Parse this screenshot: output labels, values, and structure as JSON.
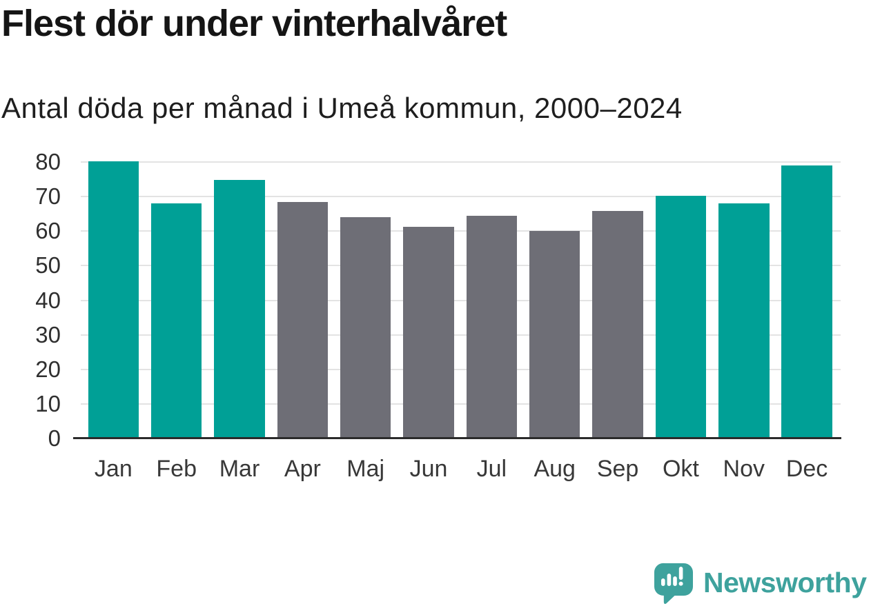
{
  "header": {
    "title": "Flest dör under vinterhalvåret",
    "subtitle": "Antal döda per månad i Umeå kommun, 2000–2024"
  },
  "chart_data": {
    "type": "bar",
    "title": "Flest dör under vinterhalvåret",
    "subtitle": "Antal döda per månad i Umeå kommun, 2000–2024",
    "categories": [
      "Jan",
      "Feb",
      "Mar",
      "Apr",
      "Maj",
      "Jun",
      "Jul",
      "Aug",
      "Sep",
      "Okt",
      "Nov",
      "Dec"
    ],
    "values": [
      80.1,
      68.0,
      74.8,
      68.5,
      64.1,
      61.2,
      64.5,
      60.1,
      65.8,
      70.3,
      68.1,
      79.1
    ],
    "highlight_categories": [
      "Jan",
      "Feb",
      "Mar",
      "Okt",
      "Nov",
      "Dec"
    ],
    "colors": {
      "winter_bar": "#00A096",
      "summer_bar": "#6E6E76",
      "gridline": "#e3e3e3",
      "axis_line": "#2b2b2b"
    },
    "xlabel": "",
    "ylabel": "",
    "ylim": [
      0,
      80
    ],
    "yticks": [
      0,
      10,
      20,
      30,
      40,
      50,
      60,
      70,
      80
    ],
    "grid": "horizontal",
    "legend_position": "none"
  },
  "footer": {
    "brand": "Newsworthy",
    "brand_color": "#3EA29D",
    "icon": "newsworthy-speech-bubble-barchart-icon"
  }
}
